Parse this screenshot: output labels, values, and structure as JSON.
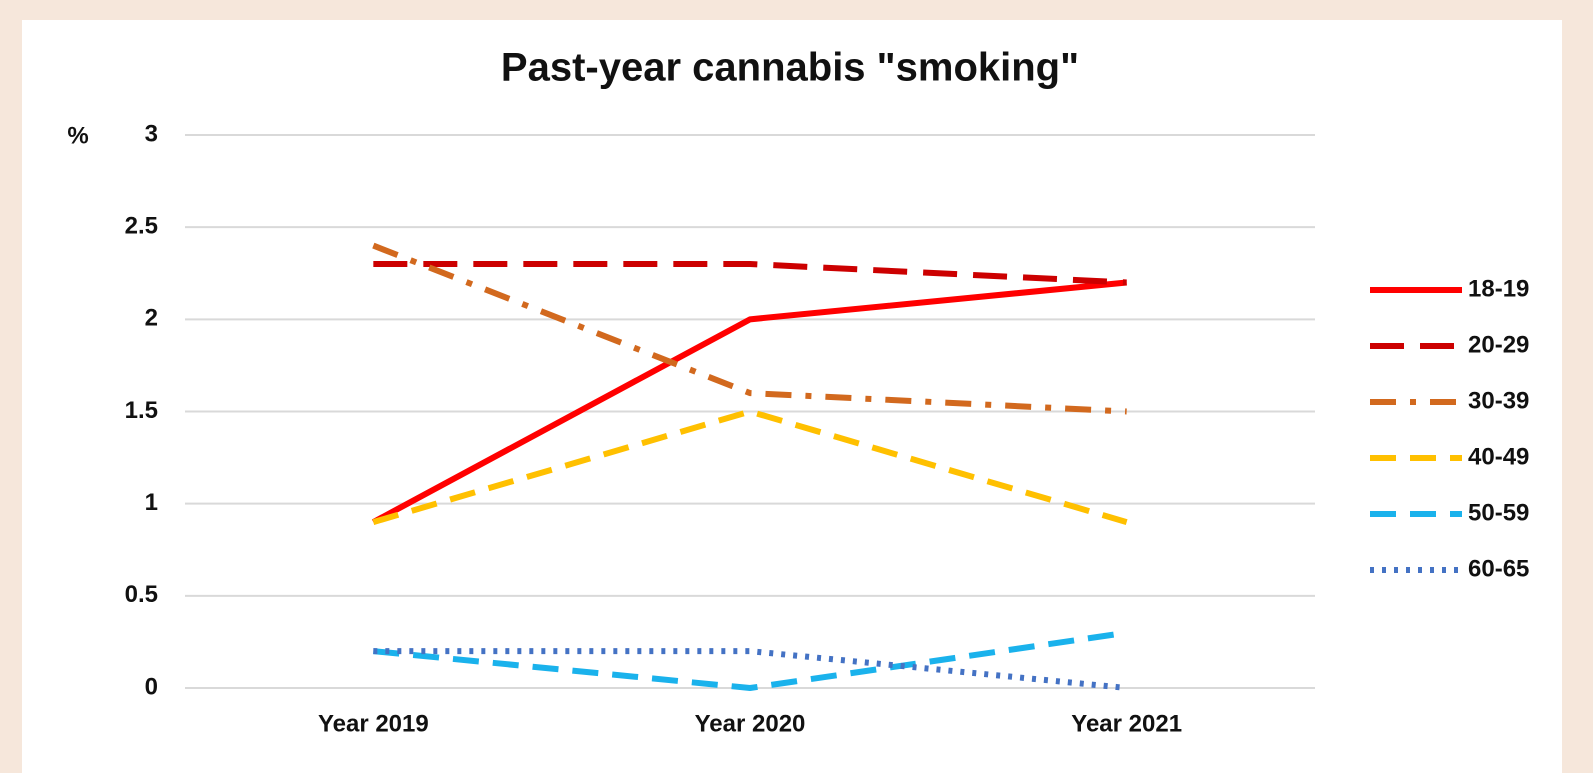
{
  "chart_data": {
    "type": "line",
    "title": "Past-year cannabis \"smoking\"",
    "y_label": "%",
    "categories": [
      "Year 2019",
      "Year 2020",
      "Year 2021"
    ],
    "series": [
      {
        "name": "18-19",
        "color": "#ff0000",
        "dash": "solid",
        "values": [
          0.9,
          2.0,
          2.2
        ]
      },
      {
        "name": "20-29",
        "color": "#cc0000",
        "dash": "longdash",
        "values": [
          2.3,
          2.3,
          2.2
        ]
      },
      {
        "name": "30-39",
        "color": "#d2691e",
        "dash": "dashdot",
        "values": [
          2.4,
          1.6,
          1.5
        ]
      },
      {
        "name": "40-49",
        "color": "#ffc000",
        "dash": "dash",
        "values": [
          0.9,
          1.5,
          0.9
        ]
      },
      {
        "name": "50-59",
        "color": "#1ab2ec",
        "dash": "dash",
        "values": [
          0.2,
          0.0,
          0.3
        ]
      },
      {
        "name": "60-65",
        "color": "#4472c4",
        "dash": "dot",
        "values": [
          0.2,
          0.2,
          0.0
        ]
      }
    ],
    "ylim": [
      0,
      3
    ],
    "yticks": [
      0,
      0.5,
      1,
      1.5,
      2,
      2.5,
      3
    ],
    "grid": true,
    "legend": "right"
  }
}
